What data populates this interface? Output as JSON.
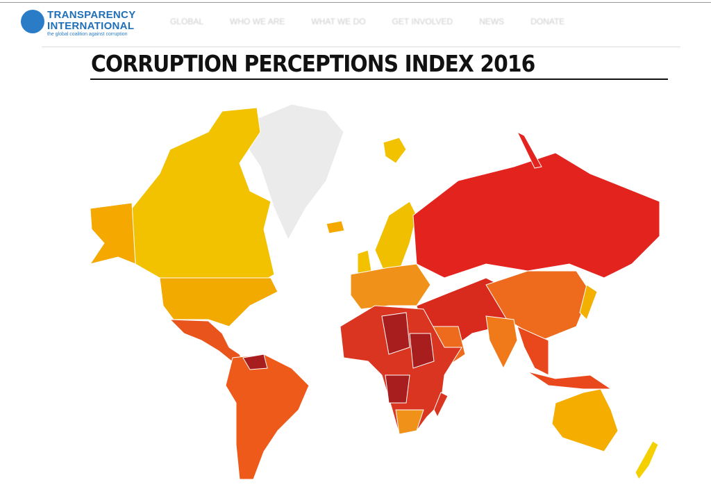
{
  "header": {
    "logo": {
      "line1": "TRANSPARENCY",
      "line2": "INTERNATIONAL",
      "tagline": "the global coalition against corruption"
    },
    "nav": [
      "GLOBAL",
      "WHO WE ARE",
      "WHAT WE DO",
      "GET INVOLVED",
      "NEWS",
      "DONATE"
    ]
  },
  "title": "CORRUPTION PERCEPTIONS INDEX 2016"
}
